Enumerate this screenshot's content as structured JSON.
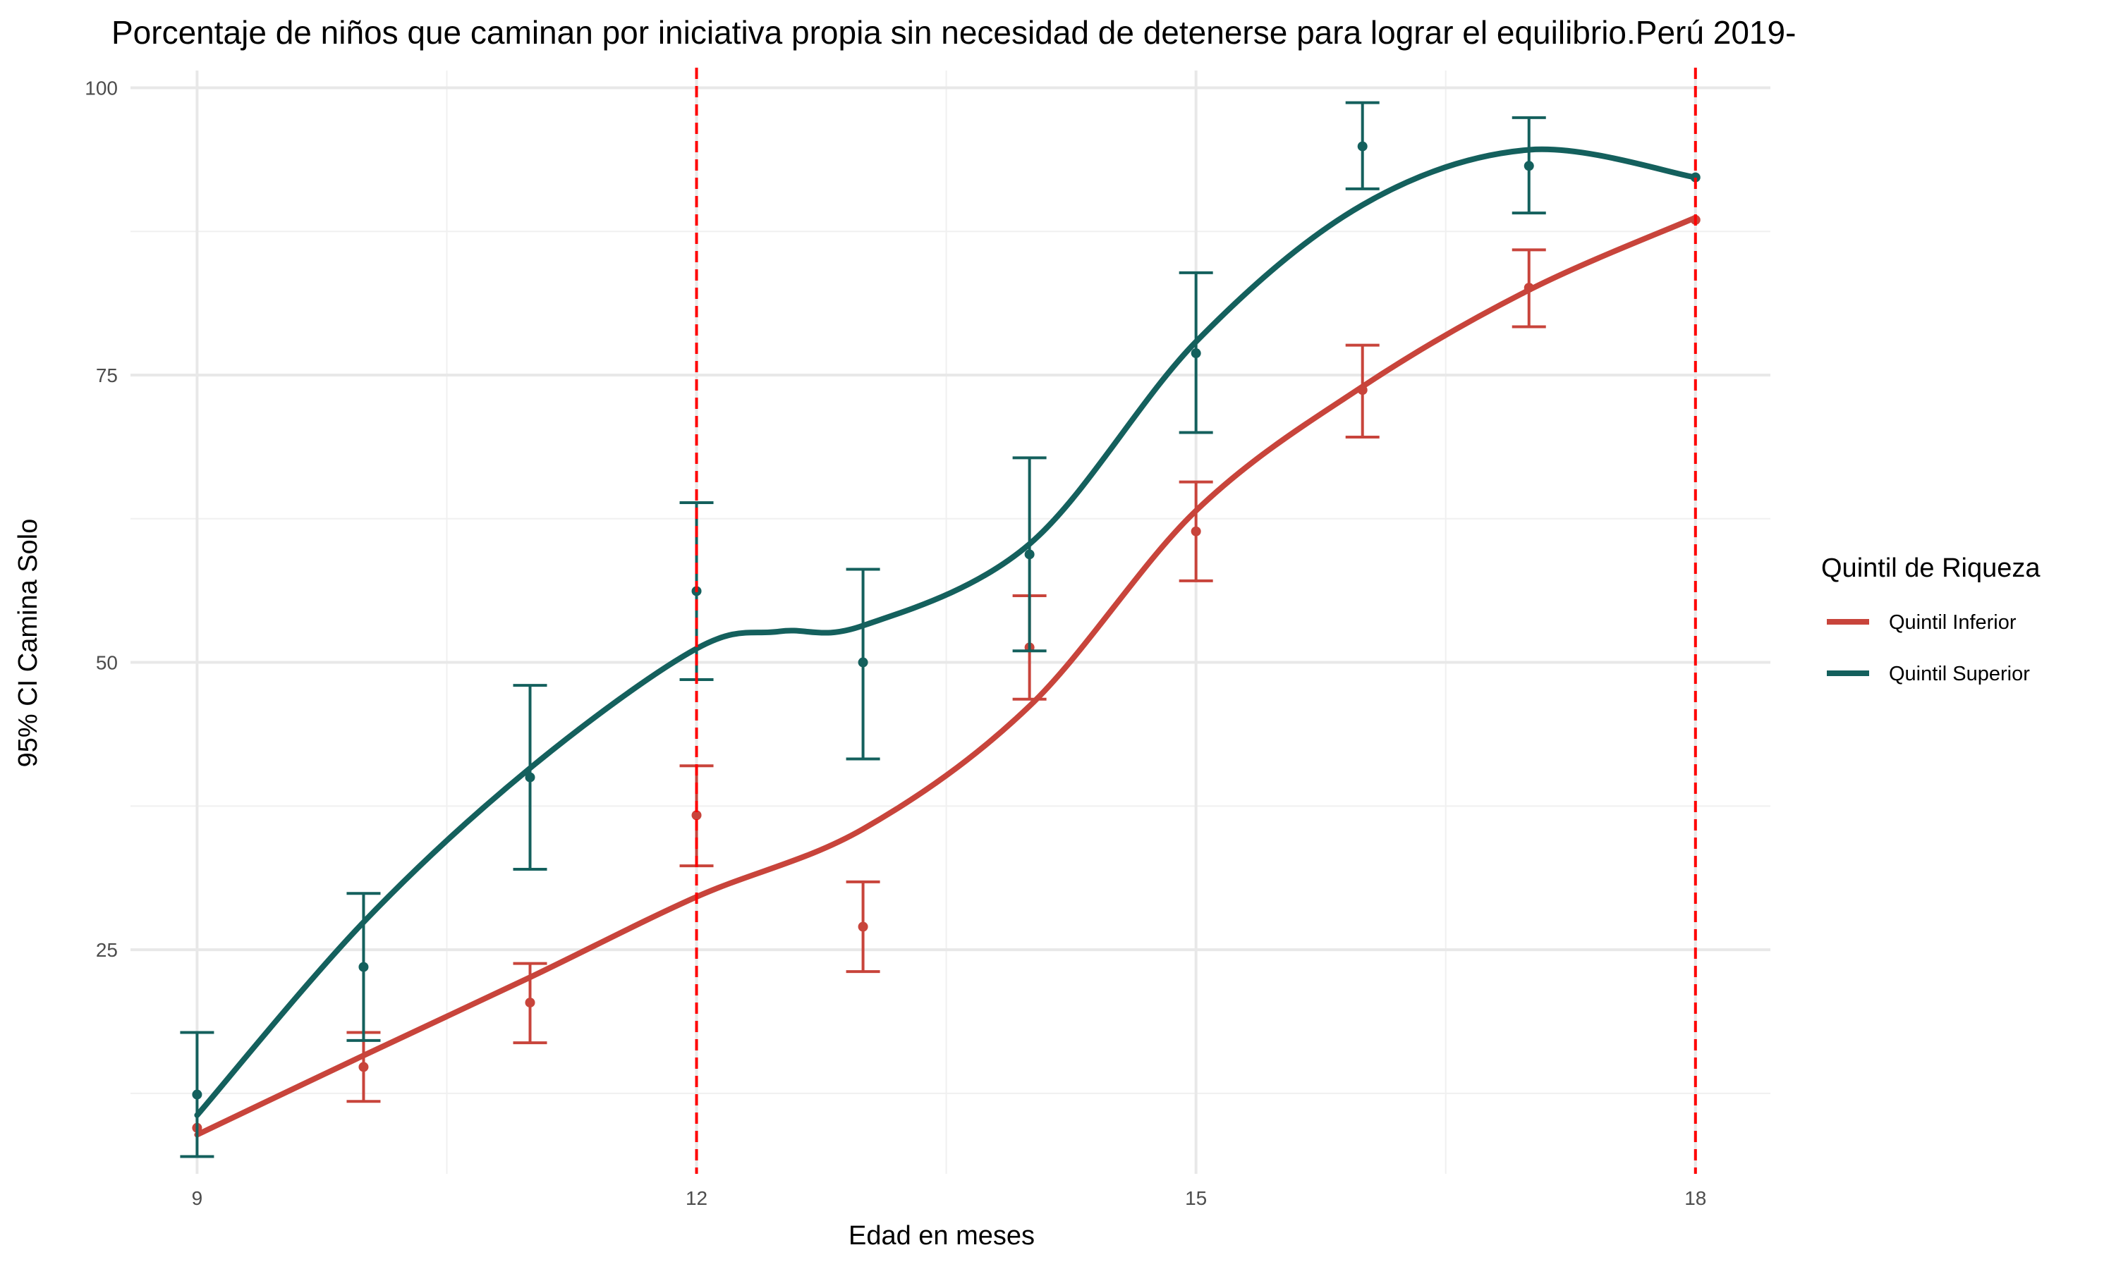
{
  "chart_data": {
    "type": "line",
    "title": "Porcentaje de niños que caminan por iniciativa propia sin necesidad de detenerse para lograr el equilibrio.Perú 2019-",
    "xlabel": "Edad en meses",
    "ylabel": "95% CI Camina Solo",
    "x_ticks": [
      "9",
      "12",
      "15",
      "18"
    ],
    "y_ticks": [
      "25",
      "50",
      "75",
      "100"
    ],
    "xlim": [
      8.6,
      18.45
    ],
    "ylim": [
      5.5,
      101.5
    ],
    "grid": true,
    "reference_lines": [
      12,
      18
    ],
    "reference_line_color": "#ff0000",
    "legend": {
      "title": "Quintil de Riqueza",
      "position": "right",
      "entries": [
        "Quintil Inferior",
        "Quintil Superior"
      ]
    },
    "series": [
      {
        "name": "Quintil Inferior",
        "color": "#c8443b",
        "points": [
          {
            "x": 9,
            "y": 9.5,
            "lo": 9.5,
            "hi": 9.5
          },
          {
            "x": 10,
            "y": 14.8,
            "lo": 11.8,
            "hi": 17.8
          },
          {
            "x": 11,
            "y": 20.4,
            "lo": 16.9,
            "hi": 23.8
          },
          {
            "x": 12,
            "y": 36.7,
            "lo": 32.3,
            "hi": 41.0
          },
          {
            "x": 13,
            "y": 27.0,
            "lo": 23.1,
            "hi": 30.9
          },
          {
            "x": 14,
            "y": 51.3,
            "lo": 46.8,
            "hi": 55.8
          },
          {
            "x": 15,
            "y": 61.4,
            "lo": 57.1,
            "hi": 65.7
          },
          {
            "x": 16,
            "y": 73.7,
            "lo": 69.6,
            "hi": 77.6
          },
          {
            "x": 17,
            "y": 82.6,
            "lo": 79.2,
            "hi": 85.9
          },
          {
            "x": 18,
            "y": 88.5,
            "lo": 88.5,
            "hi": 88.5
          }
        ],
        "smooth": [
          [
            9,
            8.9
          ],
          [
            10,
            15.8
          ],
          [
            11,
            22.6
          ],
          [
            12,
            29.6
          ],
          [
            13,
            35.5
          ],
          [
            14,
            46.2
          ],
          [
            15,
            63.2
          ],
          [
            16,
            74.0
          ],
          [
            17,
            82.4
          ],
          [
            18,
            88.7
          ]
        ]
      },
      {
        "name": "Quintil Superior",
        "color": "#14605d",
        "points": [
          {
            "x": 9,
            "y": 12.4,
            "lo": 7.0,
            "hi": 17.8
          },
          {
            "x": 10,
            "y": 23.5,
            "lo": 17.1,
            "hi": 29.9
          },
          {
            "x": 11,
            "y": 40.0,
            "lo": 32.0,
            "hi": 48.0
          },
          {
            "x": 12,
            "y": 56.2,
            "lo": 48.5,
            "hi": 63.9
          },
          {
            "x": 13,
            "y": 50.0,
            "lo": 41.6,
            "hi": 58.1
          },
          {
            "x": 14,
            "y": 59.4,
            "lo": 51.0,
            "hi": 67.8
          },
          {
            "x": 15,
            "y": 76.9,
            "lo": 70.0,
            "hi": 83.9
          },
          {
            "x": 16,
            "y": 94.9,
            "lo": 91.2,
            "hi": 98.7
          },
          {
            "x": 17,
            "y": 93.2,
            "lo": 89.1,
            "hi": 97.4
          },
          {
            "x": 18,
            "y": 92.2,
            "lo": 92.2,
            "hi": 92.2
          }
        ],
        "smooth": [
          [
            9,
            10.6
          ],
          [
            10,
            27.4
          ],
          [
            11,
            40.8
          ],
          [
            12,
            51.2
          ],
          [
            12.5,
            52.7
          ],
          [
            13,
            53.2
          ],
          [
            14,
            60.3
          ],
          [
            15,
            77.9
          ],
          [
            16,
            89.8
          ],
          [
            17,
            94.6
          ],
          [
            18,
            92.2
          ]
        ]
      }
    ]
  }
}
